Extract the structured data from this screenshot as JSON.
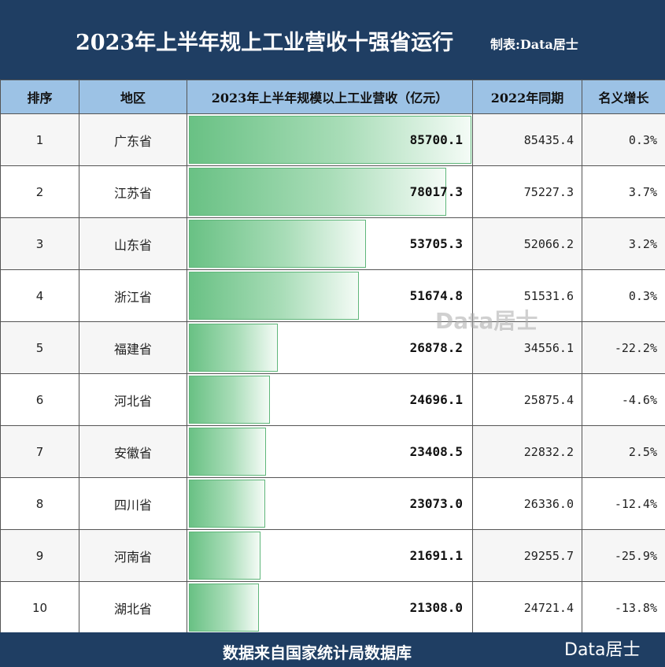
{
  "header": {
    "title": "2023年上半年规上工业营收十强省运行",
    "maker": "制表:Data居士"
  },
  "columns": [
    "排序",
    "地区",
    "2023年上半年规模以上工业营收（亿元）",
    "2022年同期",
    "名义增长"
  ],
  "chart_data": {
    "type": "table",
    "title": "2023年上半年规上工业营收十强省运行",
    "xmax": 85700.1,
    "rows": [
      {
        "rank": "1",
        "region": "广东省",
        "value": 85700.1,
        "value_label": "85700.1",
        "prev": "85435.4",
        "growth": "0.3%"
      },
      {
        "rank": "2",
        "region": "江苏省",
        "value": 78017.3,
        "value_label": "78017.3",
        "prev": "75227.3",
        "growth": "3.7%"
      },
      {
        "rank": "3",
        "region": "山东省",
        "value": 53705.3,
        "value_label": "53705.3",
        "prev": "52066.2",
        "growth": "3.2%"
      },
      {
        "rank": "4",
        "region": "浙江省",
        "value": 51674.8,
        "value_label": "51674.8",
        "prev": "51531.6",
        "growth": "0.3%"
      },
      {
        "rank": "5",
        "region": "福建省",
        "value": 26878.2,
        "value_label": "26878.2",
        "prev": "34556.1",
        "growth": "-22.2%"
      },
      {
        "rank": "6",
        "region": "河北省",
        "value": 24696.1,
        "value_label": "24696.1",
        "prev": "25875.4",
        "growth": "-4.6%"
      },
      {
        "rank": "7",
        "region": "安徽省",
        "value": 23408.5,
        "value_label": "23408.5",
        "prev": "22832.2",
        "growth": "2.5%"
      },
      {
        "rank": "8",
        "region": "四川省",
        "value": 23073.0,
        "value_label": "23073.0",
        "prev": "26336.0",
        "growth": "-12.4%"
      },
      {
        "rank": "9",
        "region": "河南省",
        "value": 21691.1,
        "value_label": "21691.1",
        "prev": "29255.7",
        "growth": "-25.9%"
      },
      {
        "rank": "10",
        "region": "湖北省",
        "value": 21308.0,
        "value_label": "21308.0",
        "prev": "24721.4",
        "growth": "-13.8%"
      }
    ],
    "bar_color": "#69c184"
  },
  "watermark": "Data居士",
  "footer": {
    "source": "数据来自国家统计局数据库",
    "brand": "Data居士"
  },
  "colors": {
    "header_bg": "#1f3e63",
    "column_header_bg": "#9cc2e5"
  }
}
